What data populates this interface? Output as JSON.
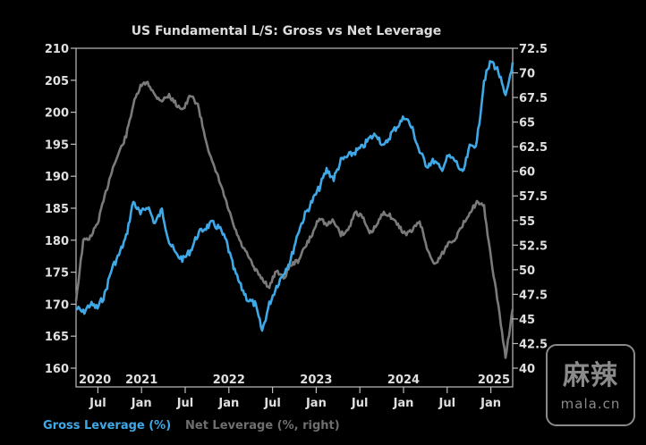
{
  "chart_data": {
    "type": "line",
    "title": "US Fundamental L/S: Gross vs Net Leverage",
    "x_start": "2020-04",
    "x_end": "2025-04",
    "x_frequency": "monthly",
    "x_year_labels": [
      "2020",
      "2021",
      "2022",
      "2023",
      "2024",
      "2025"
    ],
    "x_month_labels": [
      "Jul",
      "Jan",
      "Jul",
      "Jan",
      "Jul",
      "Jan",
      "Jul",
      "Jan",
      "Jul",
      "Jan"
    ],
    "x_month_label_dates": [
      "2020-07",
      "2021-01",
      "2021-07",
      "2022-01",
      "2022-07",
      "2023-01",
      "2023-07",
      "2024-01",
      "2024-07",
      "2025-01"
    ],
    "y_left": {
      "label": "Gross Leverage (%)",
      "range": [
        160,
        210
      ],
      "ticks": [
        160,
        165,
        170,
        175,
        180,
        185,
        190,
        195,
        200,
        205,
        210
      ]
    },
    "y_right": {
      "label": "Net Leverage (%, right)",
      "range": [
        40,
        72.5
      ],
      "ticks": [
        "40",
        "42.5",
        "45",
        "47.5",
        "50",
        "52.5",
        "55",
        "57.5",
        "60",
        "62.5",
        "65",
        "67.5",
        "70",
        "72.5"
      ]
    },
    "grid": false,
    "legend_placement": "bottom-left",
    "series": [
      {
        "name": "Gross Leverage (%)",
        "axis": "left",
        "color": "#3fa9e8",
        "values": [
          169.4,
          168.7,
          170,
          169.4,
          171.5,
          175.6,
          177.7,
          180.5,
          186.1,
          184,
          185.4,
          182.6,
          184.7,
          179.8,
          177.7,
          177,
          178.4,
          180.9,
          181.9,
          182.6,
          181.9,
          179.8,
          175.6,
          172.8,
          170.7,
          170,
          165.8,
          170,
          172.8,
          174.9,
          177,
          181.2,
          184,
          186.1,
          188.2,
          191,
          189.6,
          192.4,
          193.1,
          193.8,
          194.5,
          195.9,
          196.6,
          194.5,
          196.6,
          198,
          199.4,
          197.3,
          193.8,
          191.7,
          192.4,
          191,
          193.1,
          192.4,
          190.3,
          194.5,
          195.2,
          205,
          208,
          206.4,
          202.2,
          207.8
        ]
      },
      {
        "name": "Net Leverage (%, right)",
        "axis": "right",
        "color": "#7a7a7a",
        "values": [
          46.9,
          52.9,
          53.3,
          54.7,
          57.4,
          60.1,
          61.9,
          63.6,
          66.8,
          68.6,
          69.1,
          67.7,
          67.2,
          67.7,
          66.8,
          66.3,
          67.7,
          66.8,
          63.6,
          60.9,
          59.1,
          56.8,
          54.5,
          52.7,
          51.4,
          50,
          49.1,
          48.2,
          50,
          49.1,
          50.5,
          50.9,
          52.3,
          53.6,
          55.4,
          54.5,
          55,
          53.6,
          54,
          55.9,
          55.4,
          53.6,
          54.5,
          55.9,
          55.4,
          54.5,
          53.6,
          54,
          55,
          52.3,
          50.5,
          51.4,
          52.7,
          53.2,
          54.5,
          55.9,
          56.8,
          56.4,
          50.9,
          46.4,
          41,
          46
        ]
      }
    ]
  },
  "legend": {
    "gross_label": "Gross Leverage (%)",
    "net_label": "Net Leverage (%, right)"
  },
  "watermark": {
    "chinese": "麻辣",
    "latin": "mala.cn"
  }
}
